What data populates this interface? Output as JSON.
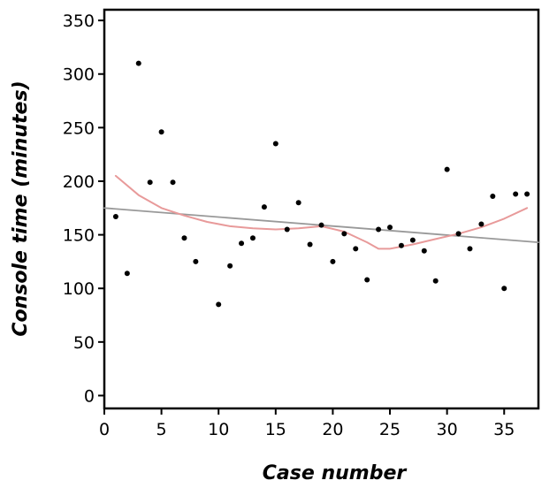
{
  "chart_data": {
    "type": "scatter",
    "title": "",
    "xlabel": "Case number",
    "ylabel": "Console time (minutes)",
    "xlim": [
      0,
      38
    ],
    "ylim": [
      -12,
      360
    ],
    "xticks": [
      0,
      5,
      10,
      15,
      20,
      25,
      30,
      35
    ],
    "yticks": [
      0,
      50,
      100,
      150,
      200,
      250,
      300,
      350
    ],
    "grid": false,
    "legend": "none",
    "colors": {
      "points": "#000000",
      "linear_fit": "#999999",
      "smooth_fit": "#e89a9a",
      "frame": "#000000"
    },
    "series": [
      {
        "kind": "scatter",
        "points": [
          [
            1,
            167
          ],
          [
            2,
            114
          ],
          [
            3,
            310
          ],
          [
            4,
            199
          ],
          [
            5,
            246
          ],
          [
            6,
            199
          ],
          [
            7,
            147
          ],
          [
            8,
            125
          ],
          [
            10,
            85
          ],
          [
            11,
            121
          ],
          [
            12,
            142
          ],
          [
            13,
            147
          ],
          [
            14,
            176
          ],
          [
            15,
            235
          ],
          [
            16,
            155
          ],
          [
            17,
            180
          ],
          [
            18,
            141
          ],
          [
            19,
            159
          ],
          [
            20,
            125
          ],
          [
            21,
            151
          ],
          [
            22,
            137
          ],
          [
            23,
            108
          ],
          [
            24,
            155
          ],
          [
            25,
            157
          ],
          [
            26,
            140
          ],
          [
            27,
            145
          ],
          [
            28,
            135
          ],
          [
            29,
            107
          ],
          [
            30,
            211
          ],
          [
            31,
            151
          ],
          [
            32,
            137
          ],
          [
            33,
            160
          ],
          [
            34,
            186
          ],
          [
            35,
            100
          ],
          [
            36,
            188
          ],
          [
            37,
            188
          ]
        ]
      },
      {
        "kind": "line",
        "points": [
          [
            0,
            175
          ],
          [
            38,
            143
          ]
        ]
      },
      {
        "kind": "line",
        "points": [
          [
            1,
            205
          ],
          [
            3,
            187
          ],
          [
            5,
            175
          ],
          [
            7,
            168
          ],
          [
            9,
            162
          ],
          [
            11,
            158
          ],
          [
            13,
            156
          ],
          [
            15,
            155
          ],
          [
            17,
            156
          ],
          [
            19,
            158
          ],
          [
            21,
            153
          ],
          [
            23,
            143
          ],
          [
            24,
            137
          ],
          [
            25,
            137
          ],
          [
            27,
            141
          ],
          [
            29,
            146
          ],
          [
            31,
            151
          ],
          [
            33,
            157
          ],
          [
            35,
            165
          ],
          [
            37,
            175
          ]
        ]
      }
    ]
  }
}
